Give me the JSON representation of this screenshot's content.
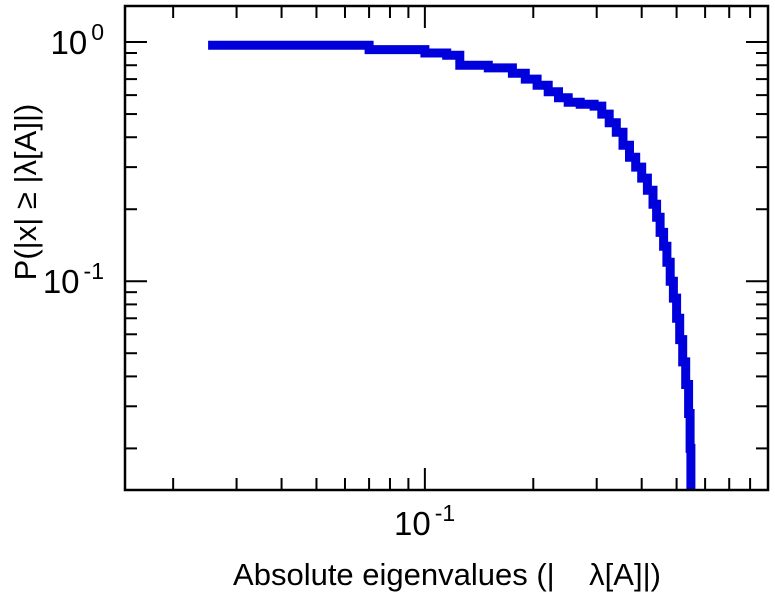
{
  "figure": {
    "background": "#ffffff",
    "frame_color": "#000000",
    "accent_color": "#0000dd"
  },
  "axes": {
    "x_label": "Absolute eigenvalues (|    λ[A]|)",
    "y_label": "P(|x| ≥ |λ[A]|)",
    "x_ticks": [
      {
        "base": "10",
        "exp": "-1"
      }
    ],
    "y_ticks": [
      {
        "base": "10",
        "exp": "0"
      },
      {
        "base": "10",
        "exp": "-1"
      }
    ]
  },
  "chart_data": {
    "type": "line",
    "subtype": "step-ccdf",
    "title": "",
    "xlabel": "Absolute eigenvalues (|λ[A]|)",
    "ylabel": "P(|x| ≥ |λ[A]|)",
    "x_scale": "log",
    "y_scale": "log",
    "xlim": [
      0.0147,
      0.897
    ],
    "ylim": [
      0.0134,
      1.415
    ],
    "grid": false,
    "legend": null,
    "line_color": "#0000dd",
    "line_width": 9,
    "x_major_ticks": [
      0.1
    ],
    "x_minor_ticks": [
      0.02,
      0.03,
      0.04,
      0.05,
      0.06,
      0.07,
      0.08,
      0.09,
      0.2,
      0.3,
      0.4,
      0.5,
      0.6,
      0.7,
      0.8
    ],
    "y_major_ticks": [
      1,
      0.1
    ],
    "y_minor_ticks": [
      0.9,
      0.8,
      0.7,
      0.6,
      0.5,
      0.4,
      0.3,
      0.2,
      0.09,
      0.08,
      0.07,
      0.06,
      0.05,
      0.04,
      0.03,
      0.02
    ],
    "series": [
      {
        "name": "P(|x| >= |lambda[A]|)",
        "x": [
          0.025,
          0.07,
          0.1,
          0.115,
          0.125,
          0.15,
          0.175,
          0.19,
          0.205,
          0.22,
          0.235,
          0.25,
          0.27,
          0.295,
          0.31,
          0.325,
          0.34,
          0.355,
          0.37,
          0.385,
          0.4,
          0.415,
          0.43,
          0.44,
          0.45,
          0.46,
          0.47,
          0.48,
          0.49,
          0.5,
          0.51,
          0.52,
          0.53,
          0.54,
          0.545,
          0.548
        ],
        "y": [
          0.97,
          0.93,
          0.9,
          0.88,
          0.8,
          0.78,
          0.74,
          0.7,
          0.66,
          0.62,
          0.585,
          0.56,
          0.55,
          0.54,
          0.5,
          0.46,
          0.42,
          0.37,
          0.33,
          0.3,
          0.27,
          0.24,
          0.21,
          0.185,
          0.16,
          0.14,
          0.12,
          0.1,
          0.085,
          0.07,
          0.057,
          0.046,
          0.037,
          0.028,
          0.02,
          0.0135
        ]
      }
    ]
  }
}
